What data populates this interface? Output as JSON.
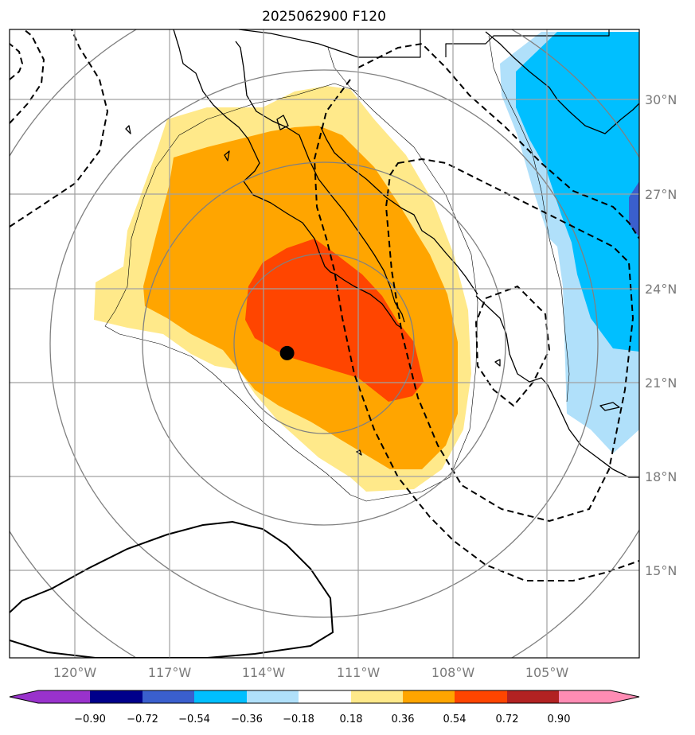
{
  "title": "2025062900 F120",
  "map": {
    "lon_range": [
      -122.8,
      -99.2
    ],
    "lat_range": [
      12.5,
      32.5
    ],
    "lon_ticks": [
      "120°W",
      "117°W",
      "114°W",
      "111°W",
      "108°W",
      "105°W"
    ],
    "lat_ticks": [
      "30°N",
      "27°N",
      "24°N",
      "21°N",
      "18°N",
      "15°N"
    ],
    "storm_center": {
      "lon": -112.4,
      "lat": 22.2
    },
    "grid": true
  },
  "colorbar": {
    "levels": [
      "−0.90",
      "−0.72",
      "−0.54",
      "−0.36",
      "−0.18",
      "0.18",
      "0.36",
      "0.54",
      "0.72",
      "0.90"
    ],
    "colors": [
      "#9932cc",
      "#00008b",
      "#3a5fcd",
      "#00bfff",
      "#b0e0fa",
      "#ffffff",
      "#ffe98a",
      "#ffa500",
      "#ff4500",
      "#b22222",
      "#ff8cb4"
    ],
    "extend": "both"
  },
  "legend_colors": {
    "coast": "#000000",
    "range_rings": "#808080",
    "grid": "#a0a0a0"
  }
}
